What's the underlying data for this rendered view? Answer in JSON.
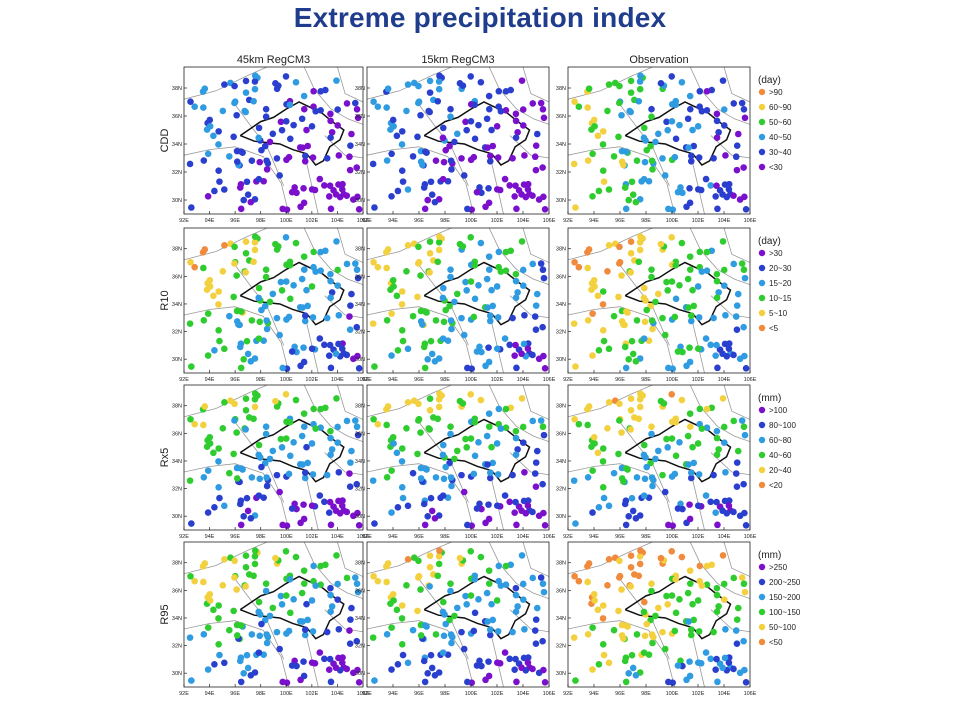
{
  "title": "Extreme precipitation index",
  "chart_data": {
    "type": "scatter",
    "column_titles": [
      "45km RegCM3",
      "15km RegCM3",
      "Observation"
    ],
    "rows": [
      {
        "label": "CDD",
        "unit": "(day)",
        "classes": [
          ">90",
          "60~90",
          "50~60",
          "40~50",
          "30~40",
          "<30"
        ]
      },
      {
        "label": "R10",
        "unit": "(day)",
        "classes": [
          ">30",
          "20~30",
          "15~20",
          "10~15",
          "5~10",
          "<5"
        ]
      },
      {
        "label": "Rx5",
        "unit": "(mm)",
        "classes": [
          ">100",
          "80~100",
          "60~80",
          "40~60",
          "20~40",
          "<20"
        ]
      },
      {
        "label": "R95",
        "unit": "(mm)",
        "classes": [
          ">250",
          "200~250",
          "150~200",
          "100~150",
          "50~100",
          "<50"
        ]
      }
    ],
    "class_colors": {
      "CDD": [
        "#f08a3c",
        "#f3d03e",
        "#2ecc2e",
        "#2f9be0",
        "#2b3fcf",
        "#7a10cc"
      ],
      "R10": [
        "#7a10cc",
        "#2b3fcf",
        "#2f9be0",
        "#2ecc2e",
        "#f3d03e",
        "#f08a3c"
      ],
      "Rx5": [
        "#7a10cc",
        "#2b3fcf",
        "#2f9be0",
        "#2ecc2e",
        "#f3d03e",
        "#f08a3c"
      ],
      "R95": [
        "#7a10cc",
        "#2b3fcf",
        "#2f9be0",
        "#2ecc2e",
        "#f3d03e",
        "#f08a3c"
      ]
    },
    "x_ticks": [
      "92E",
      "94E",
      "96E",
      "98E",
      "100E",
      "102E",
      "104E",
      "106E"
    ],
    "y_ticks": [
      "30N",
      "32N",
      "34N",
      "36N",
      "38N"
    ],
    "xlim": [
      92,
      106
    ],
    "ylim": [
      29,
      39.5
    ]
  }
}
